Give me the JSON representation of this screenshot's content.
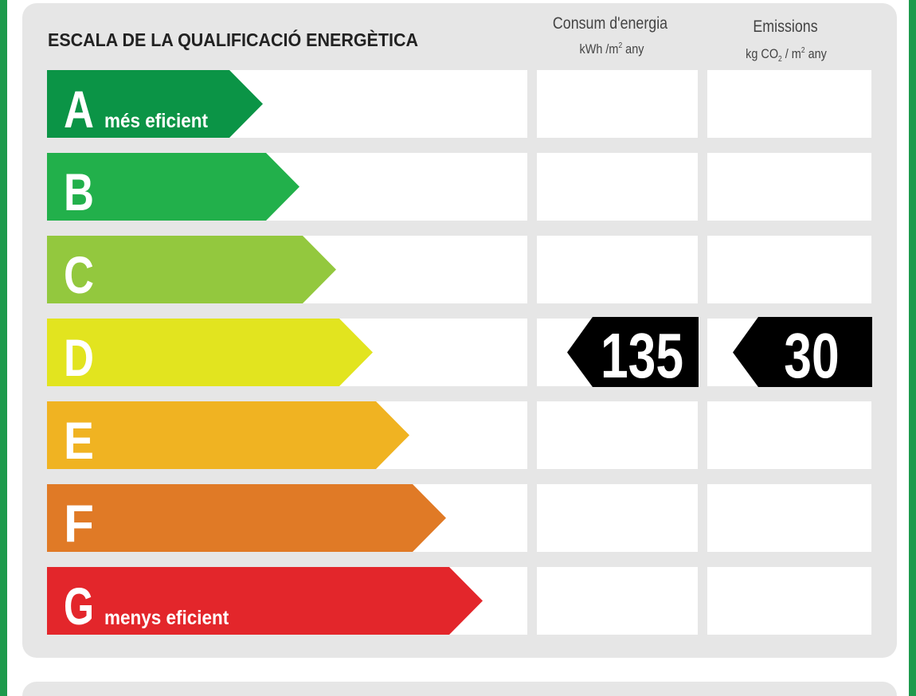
{
  "title": "ESCALA DE LA QUALIFICACIÓ ENERGÈTICA",
  "columns": [
    {
      "name": "Consum d'energia",
      "unit": [
        "kWh /m",
        "2",
        " any"
      ]
    },
    {
      "name": "Emissions",
      "unit": [
        "kg CO",
        "2",
        " / m",
        "2",
        " any"
      ]
    }
  ],
  "ratings": [
    {
      "letter": "A",
      "label": "més eficient",
      "color": "#0b9446"
    },
    {
      "letter": "B",
      "color": "#22b04b"
    },
    {
      "letter": "C",
      "color": "#93c83e"
    },
    {
      "letter": "D",
      "color": "#e2e41f"
    },
    {
      "letter": "E",
      "color": "#f0b322"
    },
    {
      "letter": "F",
      "color": "#e07a26"
    },
    {
      "letter": "G",
      "label": "menys eficient",
      "color": "#e3262b"
    }
  ],
  "results": [
    {
      "value": 135,
      "rating": "D"
    },
    {
      "value": 30,
      "rating": "D"
    }
  ]
}
